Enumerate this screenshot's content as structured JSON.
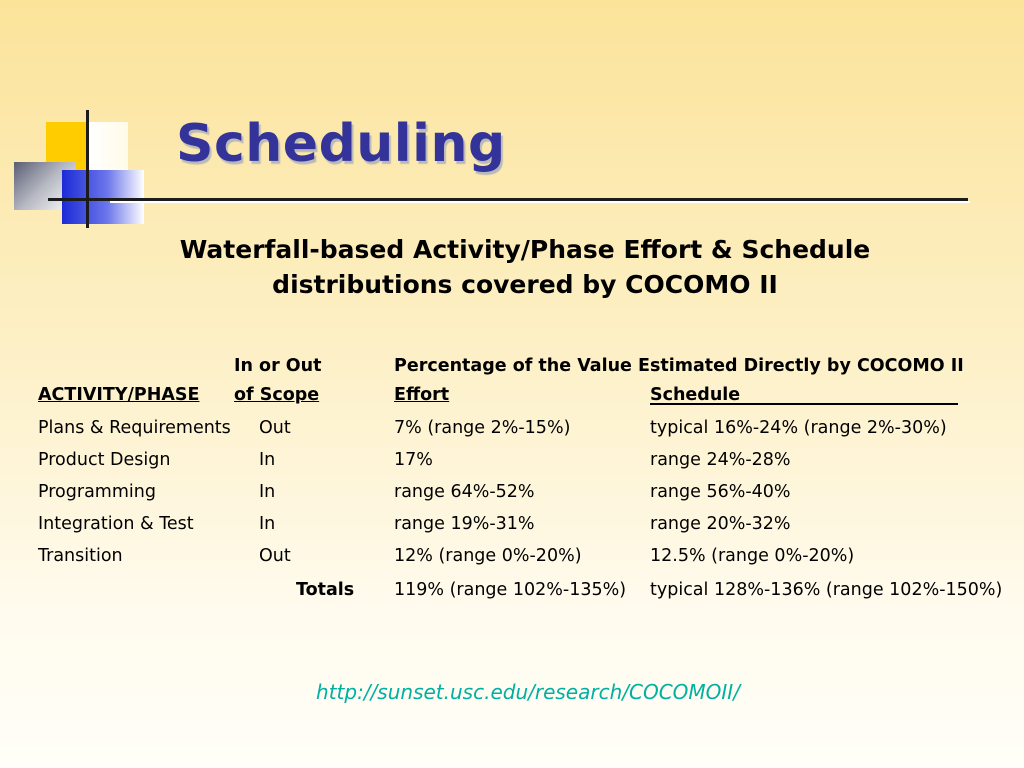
{
  "slide": {
    "title": "Scheduling",
    "subtitle_line1": "Waterfall-based Activity/Phase Effort & Schedule",
    "subtitle_line2": "distributions covered by COCOMO II",
    "url": "http://sunset.usc.edu/research/COCOMOII/"
  },
  "table": {
    "header_row1": {
      "scope": "In or Out",
      "percentage": "Percentage of the Value Estimated Directly by COCOMO II"
    },
    "header_row2": {
      "activity": "ACTIVITY/PHASE",
      "scope": "of Scope",
      "effort": "Effort",
      "schedule": "Schedule"
    },
    "rows": [
      {
        "activity": "Plans & Requirements",
        "scope": "Out",
        "effort": "7% (range 2%-15%)",
        "schedule": "typical 16%-24% (range 2%-30%)"
      },
      {
        "activity": "Product Design",
        "scope": "In",
        "effort": "17%",
        "schedule": "range 24%-28%"
      },
      {
        "activity": "Programming",
        "scope": "In",
        "effort": "range 64%-52%",
        "schedule": "range 56%-40%"
      },
      {
        "activity": "Integration & Test",
        "scope": "In",
        "effort": "range 19%-31%",
        "schedule": "range 20%-32%"
      },
      {
        "activity": "Transition",
        "scope": "Out",
        "effort": "12% (range 0%-20%)",
        "schedule": "12.5% (range 0%-20%)"
      }
    ],
    "totals": {
      "label": "Totals",
      "effort": "119% (range 102%-135%)",
      "schedule": "typical 128%-136% (range 102%-150%)"
    }
  }
}
